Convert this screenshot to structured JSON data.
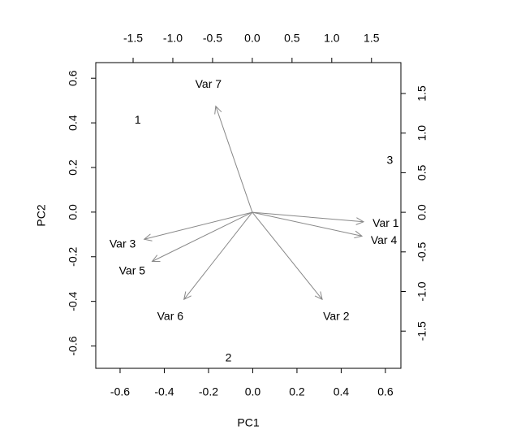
{
  "chart_data": {
    "type": "biplot",
    "x_label": "PC1",
    "y_label": "PC2",
    "xlim": [
      -0.71,
      0.67
    ],
    "ylim": [
      -0.7,
      0.67
    ],
    "xticks": [
      -0.6,
      -0.4,
      -0.2,
      {
        "value": 0,
        "label": "0.0"
      },
      0.2,
      0.4,
      0.6
    ],
    "yticks": [
      -0.6,
      -0.4,
      -0.2,
      {
        "value": 0,
        "label": "0.0"
      },
      0.2,
      0.4,
      0.6
    ],
    "x2lim": [
      -1.97,
      1.87
    ],
    "y2lim": [
      -1.97,
      1.89
    ],
    "x2ticks": [
      -1.5,
      {
        "value": -1,
        "label": "-1.0"
      },
      -0.5,
      {
        "value": 0,
        "label": "0.0"
      },
      0.5,
      {
        "value": 1,
        "label": "1.0"
      },
      1.5
    ],
    "y2ticks": [
      -1.5,
      {
        "value": -1,
        "label": "-1.0"
      },
      -0.5,
      {
        "value": 0,
        "label": "0.0"
      },
      0.5,
      {
        "value": 1,
        "label": "1.0"
      },
      1.5
    ],
    "points": {
      "color": "#000000",
      "labels": [
        "1",
        "2",
        "3"
      ],
      "x": [
        -0.52,
        -0.11,
        0.62
      ],
      "y": [
        0.41,
        -0.655,
        0.23
      ]
    },
    "loadings": {
      "color": "#888888",
      "labels": [
        "Var 1",
        "Var 2",
        "Var 3",
        "Var 4",
        "Var 5",
        "Var 6",
        "Var 7"
      ],
      "x": [
        1.4,
        0.88,
        -1.36,
        1.38,
        -1.26,
        -0.86,
        -0.46
      ],
      "y": [
        -0.12,
        -1.1,
        -0.34,
        -0.3,
        -0.62,
        -1.1,
        1.34
      ]
    }
  }
}
